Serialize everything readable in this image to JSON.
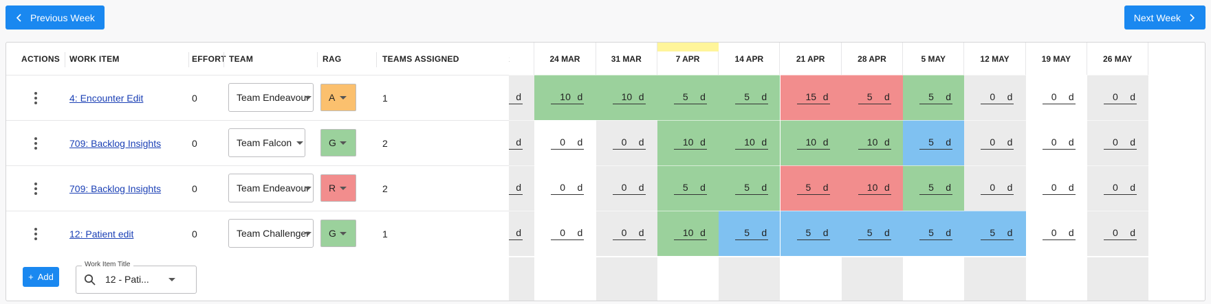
{
  "nav": {
    "prev_label": "Previous Week",
    "next_label": "Next Week"
  },
  "columns": {
    "actions": "ACTIONS",
    "work_item": "WORK ITEM",
    "effort": "EFFORT",
    "team": "TEAM",
    "rag": "RAG",
    "teams_assigned": "TEAMS ASSIGNED"
  },
  "weeks": [
    {
      "label": "AR"
    },
    {
      "label": "24 MAR"
    },
    {
      "label": "31 MAR"
    },
    {
      "label": "7 APR",
      "current": true
    },
    {
      "label": "14 APR"
    },
    {
      "label": "21 APR"
    },
    {
      "label": "28 APR"
    },
    {
      "label": "5 MAY"
    },
    {
      "label": "12 MAY"
    },
    {
      "label": "19 MAY"
    },
    {
      "label": "26 MAY"
    }
  ],
  "unit": "d",
  "rows": [
    {
      "work_item": "4: Encounter Edit",
      "effort": "0",
      "team": "Team Endeavour",
      "rag": "A",
      "teams_assigned": "1",
      "cells": [
        {
          "v": "",
          "c": "#ebebeb"
        },
        {
          "v": "10",
          "c": "#9bd19c"
        },
        {
          "v": "10",
          "c": "#9bd19c"
        },
        {
          "v": "5",
          "c": "#9bd19c"
        },
        {
          "v": "5",
          "c": "#9bd19c"
        },
        {
          "v": "15",
          "c": "#f28d8d"
        },
        {
          "v": "5",
          "c": "#f28d8d"
        },
        {
          "v": "5",
          "c": "#9bd19c"
        },
        {
          "v": "0",
          "c": "#ebebeb"
        },
        {
          "v": "0",
          "c": "#ffffff"
        },
        {
          "v": "0",
          "c": "#ebebeb"
        }
      ]
    },
    {
      "work_item": "709: Backlog Insights",
      "effort": "0",
      "team": "Team Falcon",
      "rag": "G",
      "teams_assigned": "2",
      "cells": [
        {
          "v": "",
          "c": "#ebebeb"
        },
        {
          "v": "0",
          "c": "#ffffff"
        },
        {
          "v": "0",
          "c": "#ebebeb"
        },
        {
          "v": "10",
          "c": "#9bd19c"
        },
        {
          "v": "10",
          "c": "#9bd19c"
        },
        {
          "v": "10",
          "c": "#9bd19c"
        },
        {
          "v": "10",
          "c": "#9bd19c"
        },
        {
          "v": "5",
          "c": "#7fc1f1"
        },
        {
          "v": "0",
          "c": "#ebebeb"
        },
        {
          "v": "0",
          "c": "#ffffff"
        },
        {
          "v": "0",
          "c": "#ebebeb"
        }
      ]
    },
    {
      "work_item": "709: Backlog Insights",
      "effort": "0",
      "team": "Team Endeavour",
      "rag": "R",
      "teams_assigned": "2",
      "cells": [
        {
          "v": "",
          "c": "#ebebeb"
        },
        {
          "v": "0",
          "c": "#ffffff"
        },
        {
          "v": "0",
          "c": "#ebebeb"
        },
        {
          "v": "5",
          "c": "#9bd19c"
        },
        {
          "v": "5",
          "c": "#9bd19c"
        },
        {
          "v": "5",
          "c": "#f28d8d"
        },
        {
          "v": "10",
          "c": "#f28d8d"
        },
        {
          "v": "5",
          "c": "#9bd19c"
        },
        {
          "v": "0",
          "c": "#ebebeb"
        },
        {
          "v": "0",
          "c": "#ffffff"
        },
        {
          "v": "0",
          "c": "#ebebeb"
        }
      ]
    },
    {
      "work_item": "12: Patient edit",
      "effort": "0",
      "team": "Team Challenger",
      "rag": "G",
      "teams_assigned": "1",
      "cells": [
        {
          "v": "",
          "c": "#ebebeb"
        },
        {
          "v": "0",
          "c": "#ffffff"
        },
        {
          "v": "0",
          "c": "#ebebeb"
        },
        {
          "v": "10",
          "c": "#9bd19c"
        },
        {
          "v": "5",
          "c": "#7fc1f1"
        },
        {
          "v": "5",
          "c": "#7fc1f1"
        },
        {
          "v": "5",
          "c": "#7fc1f1"
        },
        {
          "v": "5",
          "c": "#7fc1f1"
        },
        {
          "v": "5",
          "c": "#7fc1f1"
        },
        {
          "v": "0",
          "c": "#ffffff"
        },
        {
          "v": "0",
          "c": "#ebebeb"
        }
      ]
    }
  ],
  "empty_row_colors": [
    "#ebebeb",
    "#ffffff",
    "#ebebeb",
    "#ffffff",
    "#ebebeb",
    "#ffffff",
    "#ebebeb",
    "#ffffff",
    "#ebebeb",
    "#ffffff",
    "#ebebeb"
  ],
  "rag_colors": {
    "A": "#fbc06e",
    "G": "#9bd19c",
    "R": "#f28d8d"
  },
  "footer": {
    "add_label": "Add",
    "search_label": "Work Item Title",
    "search_value": "12 - Pati..."
  },
  "icons": {
    "kebab": "more-vert-icon",
    "search": "search-icon",
    "prev": "chevron-left-icon",
    "next": "chevron-right-icon"
  }
}
